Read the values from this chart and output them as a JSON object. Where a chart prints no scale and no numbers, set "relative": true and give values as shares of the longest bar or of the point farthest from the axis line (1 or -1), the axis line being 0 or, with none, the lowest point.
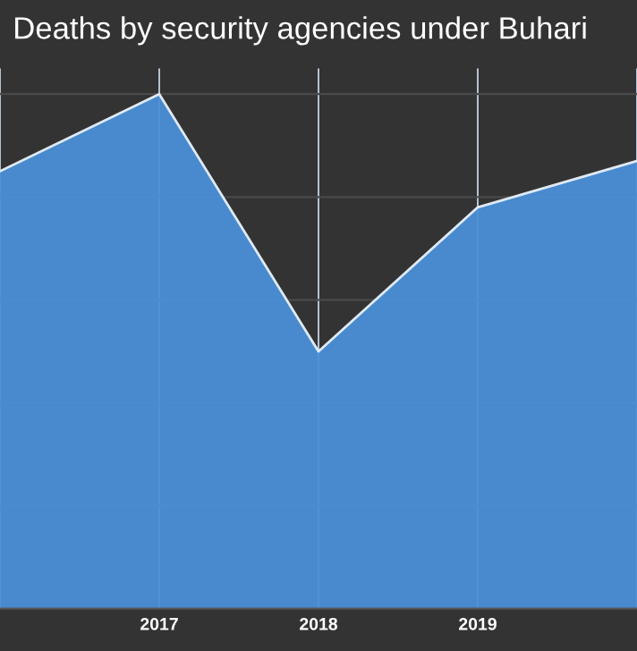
{
  "chart_data": {
    "type": "area",
    "title": "Deaths by security agencies under Buhari",
    "categories": [
      null,
      "2017",
      "2018",
      "2019",
      null
    ],
    "series": [
      {
        "color": "#4a8fd6",
        "values": [
          0.85,
          1,
          0.5,
          0.78,
          0.87
        ]
      }
    ],
    "relative": true,
    "grid": true,
    "legend": false
  }
}
